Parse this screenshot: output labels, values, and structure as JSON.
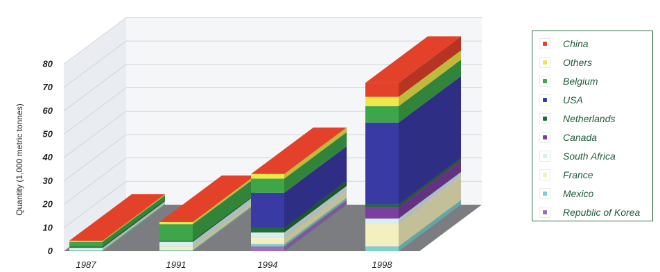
{
  "chart_data": {
    "type": "bar",
    "stacked": true,
    "three_d": true,
    "categories": [
      "1987",
      "1991",
      "1994",
      "1998"
    ],
    "ylabel": "Quantity (1,000 metric tonnes)",
    "ylim": [
      0,
      80
    ],
    "yticks": [
      "0",
      "10",
      "20",
      "30",
      "40",
      "50",
      "60",
      "70",
      "80"
    ],
    "grid": true,
    "legend_position": "right",
    "series": [
      {
        "name": "Republic of Korea",
        "color": "#9b6fbd",
        "values": [
          0,
          0,
          2,
          0
        ]
      },
      {
        "name": "Mexico",
        "color": "#7dcfd0",
        "values": [
          0.5,
          0.5,
          1,
          2
        ]
      },
      {
        "name": "France",
        "color": "#f3efbf",
        "values": [
          0.5,
          1.5,
          3,
          10
        ]
      },
      {
        "name": "South Africa",
        "color": "#d8eef3",
        "values": [
          0.5,
          2,
          2,
          2
        ]
      },
      {
        "name": "Canada",
        "color": "#7a3fa0",
        "values": [
          0,
          0,
          0,
          5
        ]
      },
      {
        "name": "Netherlands",
        "color": "#1f6e30",
        "values": [
          0.5,
          0.5,
          2,
          1
        ]
      },
      {
        "name": "USA",
        "color": "#3a3aa5",
        "values": [
          0,
          0,
          15,
          35
        ]
      },
      {
        "name": "Belgium",
        "color": "#3ea549",
        "values": [
          2,
          7,
          6,
          7
        ]
      },
      {
        "name": "Others",
        "color": "#f0e84a",
        "values": [
          0.5,
          1,
          2,
          4
        ]
      },
      {
        "name": "China",
        "color": "#e4412a",
        "values": [
          0,
          0,
          0,
          6
        ]
      }
    ]
  },
  "legend": [
    {
      "name": "China",
      "color": "#e4412a"
    },
    {
      "name": "Others",
      "color": "#f0e84a"
    },
    {
      "name": "Belgium",
      "color": "#3ea549"
    },
    {
      "name": "USA",
      "color": "#3a3aa5"
    },
    {
      "name": "Netherlands",
      "color": "#1f6e30"
    },
    {
      "name": "Canada",
      "color": "#7a3fa0"
    },
    {
      "name": "South Africa",
      "color": "#d8eef3"
    },
    {
      "name": "France",
      "color": "#f3efbf"
    },
    {
      "name": "Mexico",
      "color": "#7dcfd0"
    },
    {
      "name": "Republic of Korea",
      "color": "#9b6fbd"
    }
  ]
}
